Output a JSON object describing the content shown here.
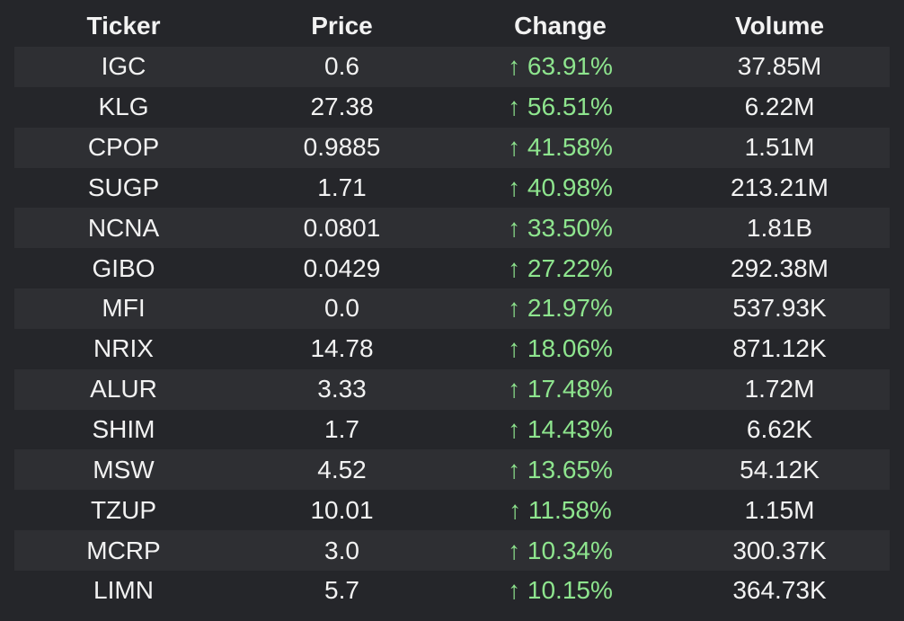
{
  "table": {
    "columns": [
      "Ticker",
      "Price",
      "Change",
      "Volume"
    ],
    "rows": [
      [
        "IGC",
        "0.6",
        "↑ 63.91%",
        "37.85M"
      ],
      [
        "KLG",
        "27.38",
        "↑ 56.51%",
        "6.22M"
      ],
      [
        "CPOP",
        "0.9885",
        "↑ 41.58%",
        "1.51M"
      ],
      [
        "SUGP",
        "1.71",
        "↑ 40.98%",
        "213.21M"
      ],
      [
        "NCNA",
        "0.0801",
        "↑ 33.50%",
        "1.81B"
      ],
      [
        "GIBO",
        "0.0429",
        "↑ 27.22%",
        "292.38M"
      ],
      [
        "MFI",
        "0.0",
        "↑ 21.97%",
        "537.93K"
      ],
      [
        "NRIX",
        "14.78",
        "↑ 18.06%",
        "871.12K"
      ],
      [
        "ALUR",
        "3.33",
        "↑ 17.48%",
        "1.72M"
      ],
      [
        "SHIM",
        "1.7",
        "↑ 14.43%",
        "6.62K"
      ],
      [
        "MSW",
        "4.52",
        "↑ 13.65%",
        "54.12K"
      ],
      [
        "TZUP",
        "10.01",
        "↑ 11.58%",
        "1.15M"
      ],
      [
        "MCRP",
        "3.0",
        "↑ 10.34%",
        "300.37K"
      ],
      [
        "LIMN",
        "5.7",
        "↑ 10.15%",
        "364.73K"
      ]
    ]
  },
  "colors": {
    "background": "#25262a",
    "row_alt": "#2e2f33",
    "text": "#f2f2f2",
    "positive_change": "#8ee58e"
  }
}
